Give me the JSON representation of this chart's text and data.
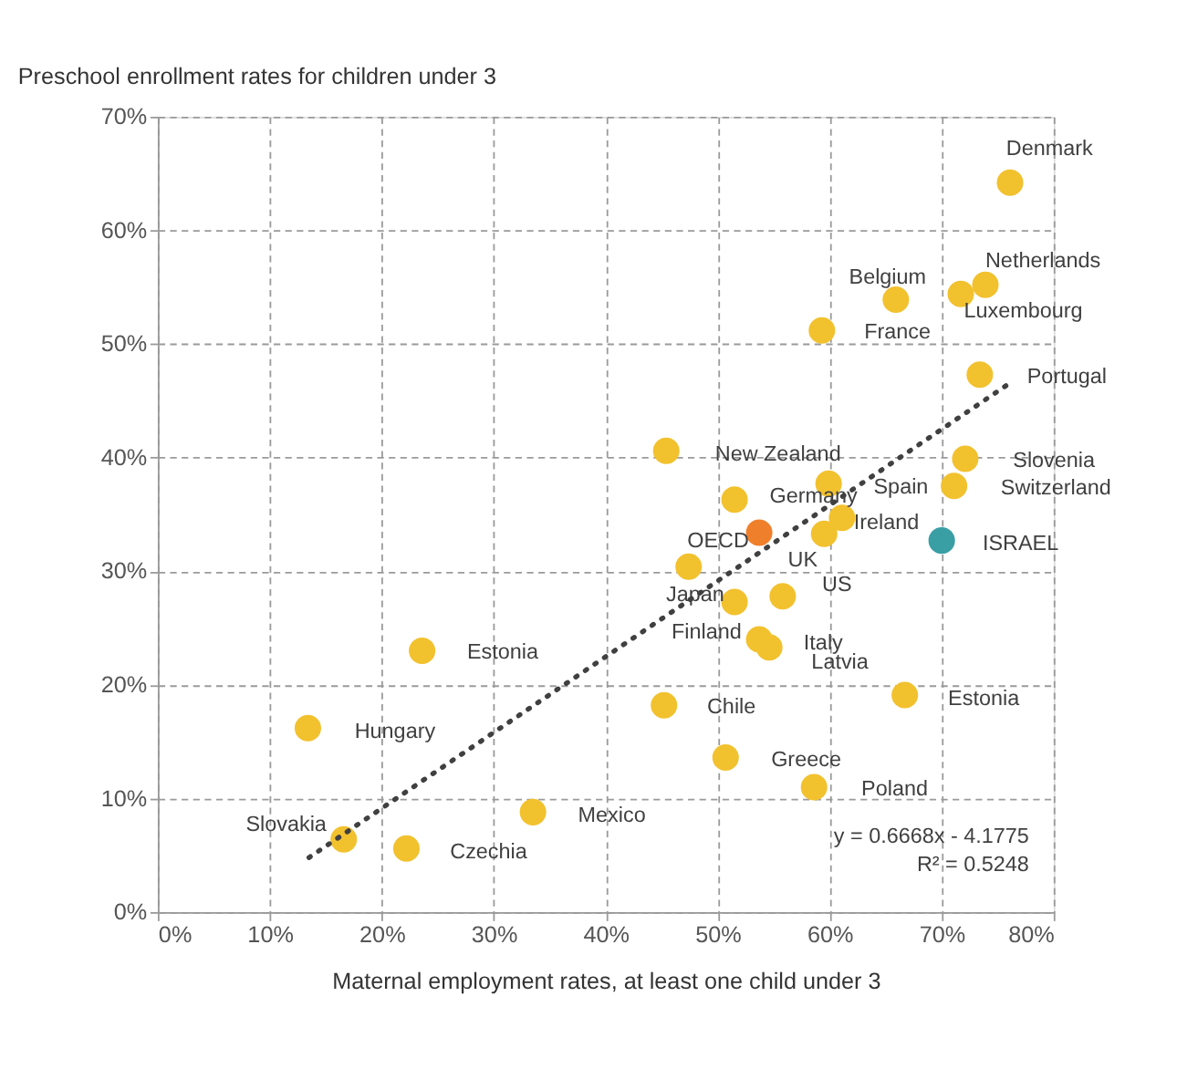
{
  "chart_data": {
    "type": "scatter",
    "title": "Preschool enrollment rates for children under 3",
    "xlabel": "Maternal employment rates, at least one child under 3",
    "xlim": [
      0,
      80
    ],
    "ylim": [
      0,
      70
    ],
    "xticks": [
      {
        "value": 0,
        "label": "0%"
      },
      {
        "value": 10,
        "label": "10%"
      },
      {
        "value": 20,
        "label": "20%"
      },
      {
        "value": 30,
        "label": "30%"
      },
      {
        "value": 40,
        "label": "40%"
      },
      {
        "value": 50,
        "label": "50%"
      },
      {
        "value": 60,
        "label": "60%"
      },
      {
        "value": 70,
        "label": "70%"
      },
      {
        "value": 80,
        "label": "80%"
      }
    ],
    "yticks": [
      {
        "value": 0,
        "label": "0%"
      },
      {
        "value": 10,
        "label": "10%"
      },
      {
        "value": 20,
        "label": "20%"
      },
      {
        "value": 30,
        "label": "30%"
      },
      {
        "value": 40,
        "label": "40%"
      },
      {
        "value": 50,
        "label": "50%"
      },
      {
        "value": 60,
        "label": "60%"
      },
      {
        "value": 70,
        "label": "70%"
      }
    ],
    "grid": true,
    "legend": false,
    "marker": "circle",
    "series": [
      {
        "x": [
          76.1,
          73.9,
          71.7,
          65.9,
          59.3,
          73.4,
          72.1,
          71.1,
          45.4,
          59.9,
          51.5,
          61.1,
          53.7,
          70.0,
          59.5,
          47.4,
          55.8,
          51.5,
          53.7,
          54.6,
          23.6,
          66.7,
          45.2,
          13.4,
          50.7,
          58.6,
          33.5,
          16.6,
          22.2
        ],
        "values": [
          64.2,
          55.2,
          54.4,
          53.9,
          51.2,
          47.3,
          39.9,
          37.5,
          40.6,
          37.7,
          36.3,
          34.7,
          33.4,
          32.7,
          33.3,
          30.4,
          27.8,
          27.3,
          24.0,
          23.3,
          23.0,
          19.1,
          18.2,
          16.2,
          13.6,
          11.0,
          8.8,
          6.4,
          5.6
        ],
        "colors": [
          "#f2c12e",
          "#f2c12e",
          "#f2c12e",
          "#f2c12e",
          "#f2c12e",
          "#f2c12e",
          "#f2c12e",
          "#f2c12e",
          "#f2c12e",
          "#f2c12e",
          "#f2c12e",
          "#f2c12e",
          "#f07f2c",
          "#3a9ea5",
          "#f2c12e",
          "#f2c12e",
          "#f2c12e",
          "#f2c12e",
          "#f2c12e",
          "#f2c12e",
          "#f2c12e",
          "#f2c12e",
          "#f2c12e",
          "#f2c12e",
          "#f2c12e",
          "#f2c12e",
          "#f2c12e",
          "#f2c12e",
          "#f2c12e"
        ]
      },
      {
        "type": "line",
        "x": [
          13.5,
          76
        ],
        "values": [
          4.8,
          46.5
        ],
        "color": "#404040",
        "line_style": "dotted",
        "marker": "none"
      }
    ],
    "annotations": [
      {
        "text": "Denmark",
        "x": 76.1,
        "y": 64.2
      },
      {
        "text": "Netherlands",
        "x": 73.9,
        "y": 55.2
      },
      {
        "text": "Luxembourg",
        "x": 71.7,
        "y": 54.4
      },
      {
        "text": "Belgium",
        "x": 65.9,
        "y": 53.9
      },
      {
        "text": "France",
        "x": 59.3,
        "y": 51.2
      },
      {
        "text": "Portugal",
        "x": 73.4,
        "y": 47.3
      },
      {
        "text": "Slovenia",
        "x": 72.1,
        "y": 39.9
      },
      {
        "text": "Switzerland",
        "x": 71.1,
        "y": 37.5
      },
      {
        "text": "New Zealand",
        "x": 45.4,
        "y": 40.6
      },
      {
        "text": "Spain",
        "x": 59.9,
        "y": 37.7
      },
      {
        "text": "Germany",
        "x": 51.5,
        "y": 36.3
      },
      {
        "text": "Ireland",
        "x": 61.1,
        "y": 34.7
      },
      {
        "text": "OECD",
        "x": 53.7,
        "y": 33.4
      },
      {
        "text": "ISRAEL",
        "x": 70.0,
        "y": 32.7
      },
      {
        "text": "UK",
        "x": 59.5,
        "y": 33.3
      },
      {
        "text": "US",
        "x": 55.8,
        "y": 27.8
      },
      {
        "text": "Japan",
        "x": 47.4,
        "y": 30.4
      },
      {
        "text": "Finland",
        "x": 51.5,
        "y": 27.3
      },
      {
        "text": "Italy",
        "x": 53.7,
        "y": 24.0
      },
      {
        "text": "Latvia",
        "x": 54.6,
        "y": 23.3
      },
      {
        "text": "Estonia",
        "x": 23.6,
        "y": 23.0
      },
      {
        "text": "Estonia",
        "x": 66.7,
        "y": 19.1
      },
      {
        "text": "Chile",
        "x": 45.2,
        "y": 18.2
      },
      {
        "text": "Hungary",
        "x": 13.4,
        "y": 16.2
      },
      {
        "text": "Greece",
        "x": 50.7,
        "y": 13.6
      },
      {
        "text": "Poland",
        "x": 58.6,
        "y": 11.0
      },
      {
        "text": "Mexico",
        "x": 33.5,
        "y": 8.8
      },
      {
        "text": "Slovakia",
        "x": 16.6,
        "y": 6.4
      },
      {
        "text": "Czechia",
        "x": 22.2,
        "y": 5.6
      },
      "y = 0.6668x - 4.1775",
      "R² = 0.5248"
    ]
  }
}
